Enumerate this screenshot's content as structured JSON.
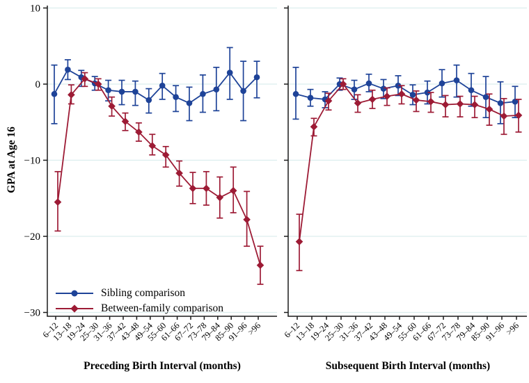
{
  "style": {
    "background": "#ffffff",
    "grid_color": "#dcedee",
    "axis_color": "#1a1a1a",
    "sibling_color": "#1e4398",
    "between_family_color": "#9d1b35"
  },
  "chart_data": [
    {
      "type": "line",
      "panel": "left",
      "xlabel": "Preceding Birth Interval (months)",
      "ylabel": "GPA at Age 16",
      "ylim": [
        -30,
        10
      ],
      "yticks": [
        10,
        0,
        -10,
        -20,
        -30
      ],
      "grid": true,
      "legend_position": "bottom-left",
      "categories": [
        "6–12",
        "13–18",
        "19–24",
        "25–30",
        "31–36",
        "37–42",
        "43–48",
        "49–54",
        "55–60",
        "61–66",
        "67–72",
        "73–78",
        "79–84",
        "85–90",
        "91–96",
        ">96"
      ],
      "series": [
        {
          "name": "Sibling comparison",
          "marker": "circle",
          "color": "#1e4398",
          "values": [
            -1.3,
            1.9,
            0.9,
            0.1,
            -0.8,
            -1.0,
            -1.0,
            -2.1,
            -0.2,
            -1.7,
            -2.5,
            -1.3,
            -0.7,
            1.5,
            -0.9,
            0.9
          ],
          "ci_high": [
            2.5,
            3.2,
            1.8,
            1.0,
            0.5,
            0.5,
            0.4,
            -0.6,
            1.4,
            -0.2,
            -0.4,
            1.2,
            2.2,
            4.8,
            3.0,
            3.0
          ],
          "ci_low": [
            -5.2,
            0.6,
            -0.3,
            -0.8,
            -2.2,
            -2.7,
            -2.8,
            -3.8,
            -2.0,
            -3.6,
            -4.8,
            -3.7,
            -3.5,
            -2.0,
            -4.8,
            -1.8
          ]
        },
        {
          "name": "Between-family comparison",
          "marker": "diamond",
          "color": "#9d1b35",
          "values": [
            -15.5,
            -1.4,
            0.7,
            0.0,
            -2.9,
            -4.9,
            -6.3,
            -8.1,
            -9.3,
            -11.7,
            -13.7,
            -13.7,
            -14.9,
            -14.0,
            -17.8,
            -23.8
          ],
          "ci_high": [
            -11.5,
            -0.1,
            1.5,
            0.7,
            -1.7,
            -3.8,
            -5.1,
            -6.6,
            -8.2,
            -10.1,
            -11.6,
            -11.5,
            -12.2,
            -10.9,
            -14.1,
            -21.3
          ],
          "ci_low": [
            -19.3,
            -2.6,
            -0.3,
            -0.8,
            -4.2,
            -6.1,
            -7.5,
            -9.3,
            -10.9,
            -13.4,
            -15.7,
            -15.9,
            -17.6,
            -16.9,
            -21.3,
            -26.3
          ]
        }
      ]
    },
    {
      "type": "line",
      "panel": "right",
      "xlabel": "Subsequent Birth Interval (months)",
      "ylabel": "",
      "ylim": [
        -30,
        10
      ],
      "yticks": [
        10,
        0,
        -10,
        -20,
        -30
      ],
      "grid": true,
      "categories": [
        "6–12",
        "13–18",
        "19–24",
        "25–30",
        "31–36",
        "37–42",
        "43–48",
        "49–54",
        "55–60",
        "61–66",
        "67–72",
        "73–78",
        "79–84",
        "85–90",
        "91–96",
        ">96"
      ],
      "series": [
        {
          "name": "Sibling comparison",
          "marker": "circle",
          "color": "#1e4398",
          "values": [
            -1.3,
            -1.8,
            -2.0,
            0.0,
            -0.7,
            0.1,
            -0.6,
            -0.2,
            -1.4,
            -1.1,
            0.1,
            0.5,
            -0.8,
            -1.7,
            -2.5,
            -2.3
          ],
          "ci_high": [
            2.2,
            -0.7,
            -1.0,
            0.8,
            0.5,
            1.3,
            0.6,
            1.1,
            -0.1,
            0.4,
            1.9,
            2.5,
            1.4,
            1.0,
            0.3,
            -0.3
          ],
          "ci_low": [
            -4.6,
            -2.9,
            -3.1,
            -0.8,
            -2.0,
            -1.0,
            -1.9,
            -1.5,
            -2.7,
            -2.6,
            -1.7,
            -1.7,
            -2.9,
            -4.4,
            -5.2,
            -4.4
          ]
        },
        {
          "name": "Between-family comparison",
          "marker": "diamond",
          "color": "#9d1b35",
          "values": [
            -20.7,
            -5.6,
            -2.2,
            0.0,
            -2.5,
            -2.0,
            -1.6,
            -1.3,
            -2.1,
            -2.3,
            -2.7,
            -2.6,
            -2.7,
            -3.3,
            -4.2,
            -4.1
          ],
          "ci_high": [
            -17.1,
            -4.5,
            -1.2,
            0.7,
            -1.4,
            -0.8,
            -0.5,
            -0.2,
            -0.9,
            -1.1,
            -1.5,
            -1.6,
            -1.6,
            -1.3,
            -1.9,
            -2.0
          ],
          "ci_low": [
            -24.5,
            -6.8,
            -3.4,
            -0.7,
            -3.7,
            -3.2,
            -2.8,
            -2.6,
            -3.6,
            -3.7,
            -4.3,
            -4.3,
            -4.4,
            -5.4,
            -6.6,
            -6.3
          ]
        }
      ]
    }
  ]
}
